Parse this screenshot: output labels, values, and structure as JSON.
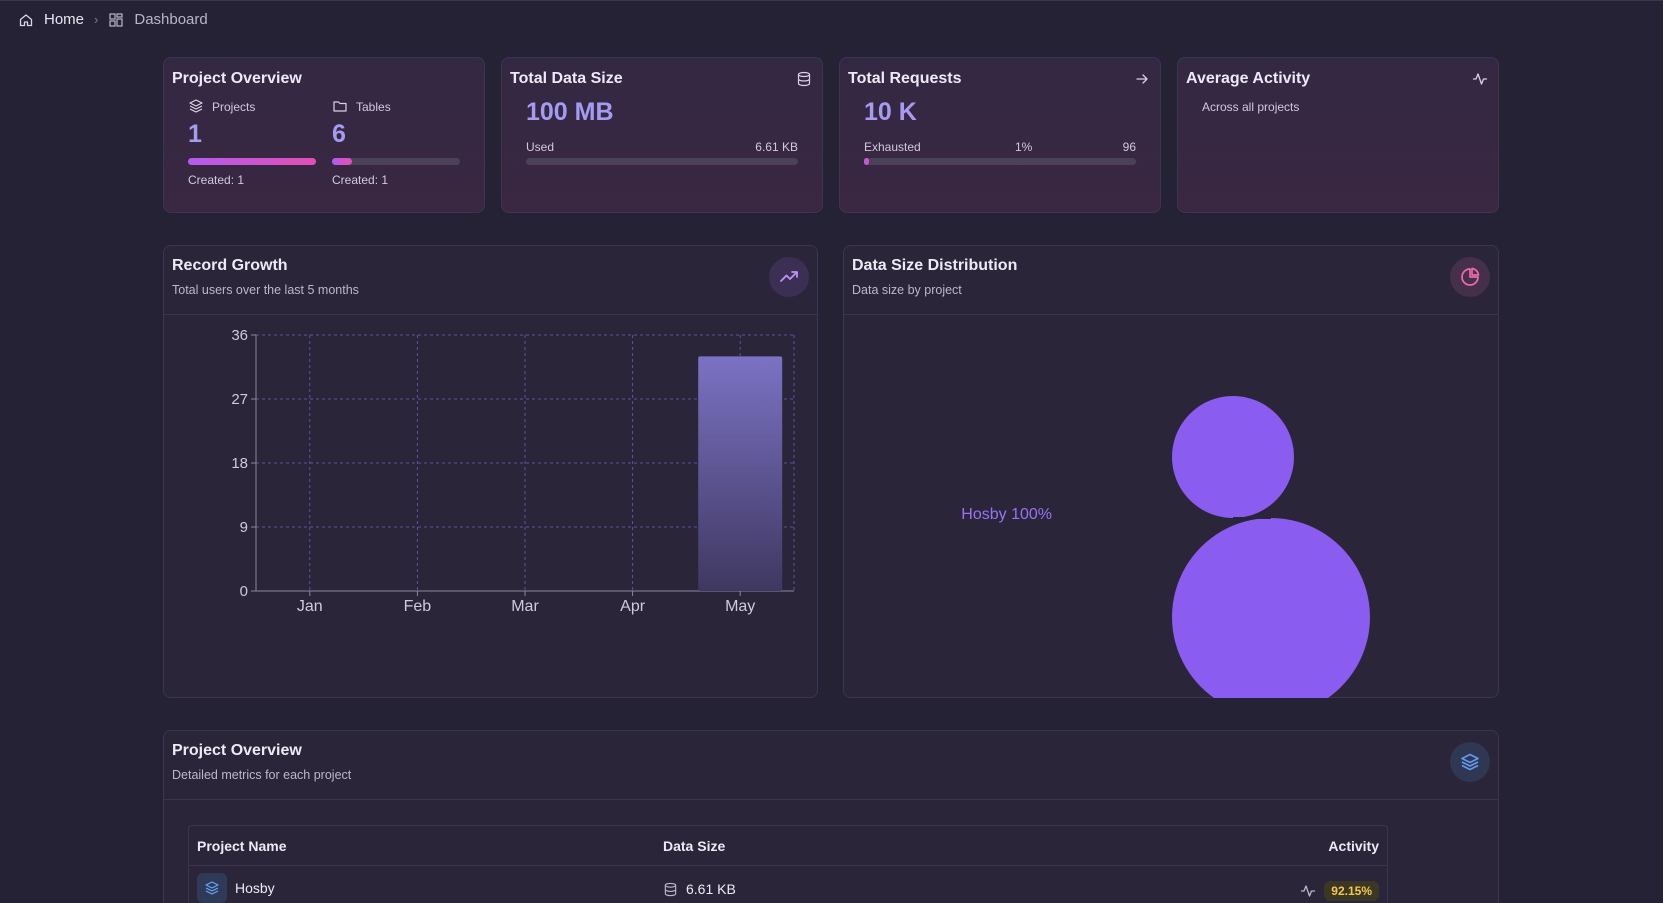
{
  "breadcrumb": {
    "home": "Home",
    "dashboard": "Dashboard"
  },
  "stats": {
    "project_overview": {
      "title": "Project Overview",
      "projects": {
        "label": "Projects",
        "value": "1",
        "created": "Created: 1",
        "fill_percent": 100
      },
      "tables": {
        "label": "Tables",
        "value": "6",
        "created": "Created: 1",
        "fill_percent": 16
      }
    },
    "total_data_size": {
      "title": "Total Data Size",
      "value": "100 MB",
      "used_label": "Used",
      "used_value": "6.61 KB",
      "fill_percent": 0
    },
    "total_requests": {
      "title": "Total Requests",
      "value": "10 K",
      "exhausted_label": "Exhausted",
      "percent": "1%",
      "count": "96",
      "fill_percent": 1
    },
    "average_activity": {
      "title": "Average Activity",
      "subtitle": "Across all projects"
    }
  },
  "record_growth": {
    "title": "Record Growth",
    "subtitle": "Total users over the last 5 months"
  },
  "data_size_distribution": {
    "title": "Data Size Distribution",
    "subtitle": "Data size by project",
    "label": "Hosby 100%"
  },
  "chart_data": [
    {
      "type": "bar",
      "title": "Record Growth",
      "categories": [
        "Jan",
        "Feb",
        "Mar",
        "Apr",
        "May"
      ],
      "values": [
        0,
        0,
        0,
        0,
        33
      ],
      "yticks": [
        "36",
        "27",
        "18",
        "9",
        "0"
      ],
      "ylim": [
        0,
        36
      ],
      "grid": true
    },
    {
      "type": "pie",
      "title": "Data Size Distribution",
      "slices": [
        {
          "label": "Hosby",
          "value": 100
        }
      ],
      "donut": true
    }
  ],
  "project_table": {
    "title": "Project Overview",
    "subtitle": "Detailed metrics for each project",
    "columns": [
      "Project Name",
      "Data Size",
      "Activity"
    ],
    "rows": [
      {
        "name": "Hosby",
        "data_size": "6.61 KB",
        "activity": "92.15%"
      }
    ]
  },
  "colors": {
    "accent": "#a59cf2",
    "pie": "#8a5cf0",
    "bar_top": "#7c72c6",
    "badge": "#f2c94c"
  }
}
